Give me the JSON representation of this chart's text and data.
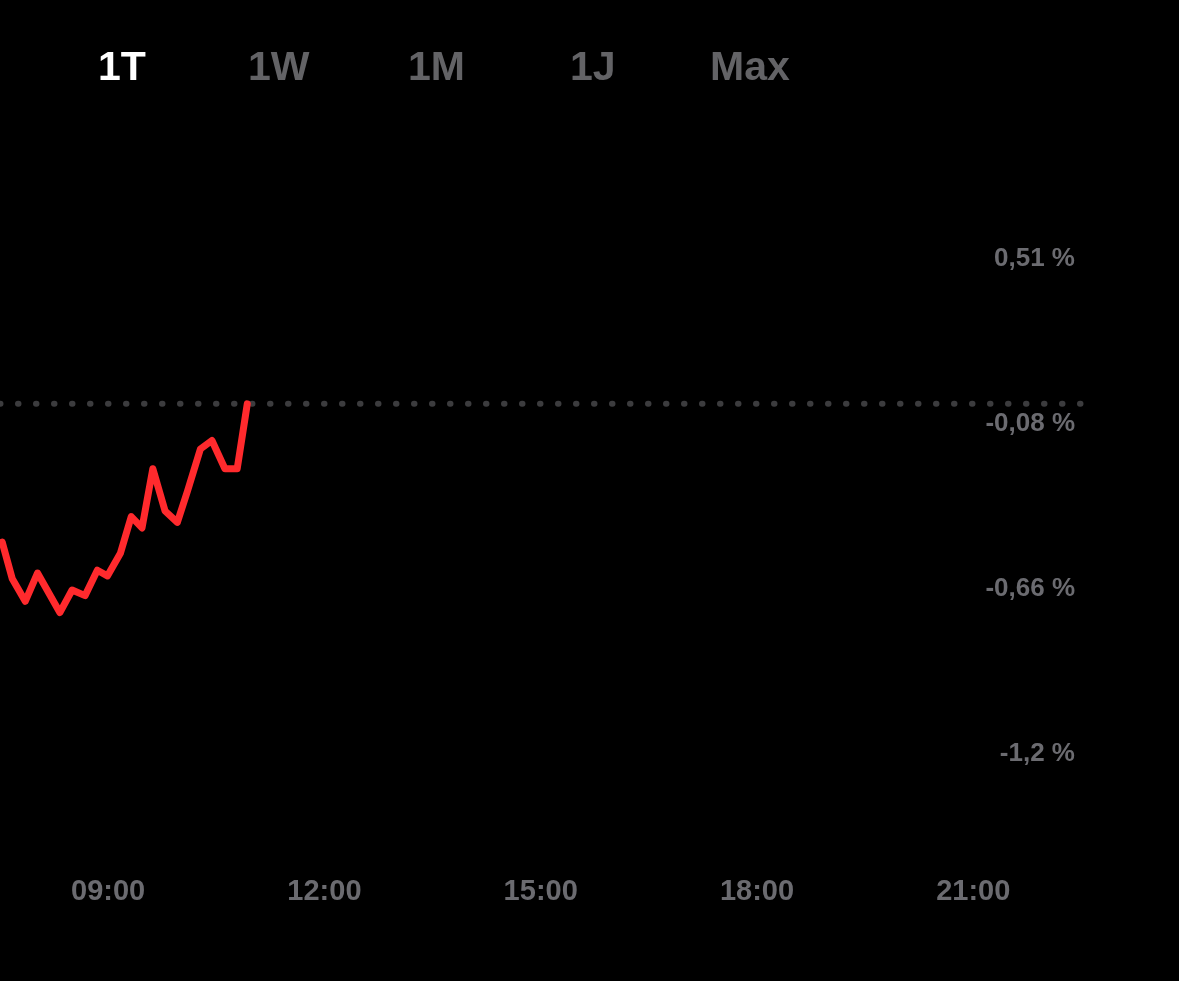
{
  "chart_data": {
    "type": "line",
    "annotations": [
      "1T",
      "1W",
      "1M",
      "1J",
      "Max"
    ],
    "x": [
      7.53,
      7.67,
      7.85,
      8.02,
      8.33,
      8.5,
      8.68,
      8.85,
      8.99,
      9.17,
      9.32,
      9.47,
      9.62,
      9.79,
      9.96,
      10.1,
      10.28,
      10.44,
      10.62,
      10.79,
      10.93
    ],
    "series": [
      {
        "color": "#ff2a2d",
        "values": [
          -0.49,
          -0.62,
          -0.7,
          -0.6,
          -0.74,
          -0.66,
          -0.68,
          -0.59,
          -0.61,
          -0.53,
          -0.4,
          -0.44,
          -0.23,
          -0.38,
          -0.42,
          -0.31,
          -0.16,
          -0.13,
          -0.23,
          -0.23,
          0.0
        ]
      }
    ],
    "xlim": [
      7.5,
      22.55
    ],
    "xticks": [
      {
        "value": 9,
        "label": "09:00"
      },
      {
        "value": 12,
        "label": "12:00"
      },
      {
        "value": 15,
        "label": "15:00"
      },
      {
        "value": 18,
        "label": "18:00"
      },
      {
        "value": 21,
        "label": "21:00"
      }
    ],
    "ylim": [
      -1.245,
      0.51
    ],
    "yticks": [
      {
        "value": 0.51,
        "label": "0,51 %"
      },
      {
        "value": -0.075,
        "label": "-0,08 %"
      },
      {
        "value": -0.66,
        "label": "-0,66 %"
      },
      {
        "value": -1.245,
        "label": "-1,2 %"
      }
    ],
    "ref_lines": [
      {
        "axis": "y",
        "value": 0,
        "color": "#3c3c3e",
        "line_style": "dotted"
      }
    ],
    "line_style": "solid"
  }
}
